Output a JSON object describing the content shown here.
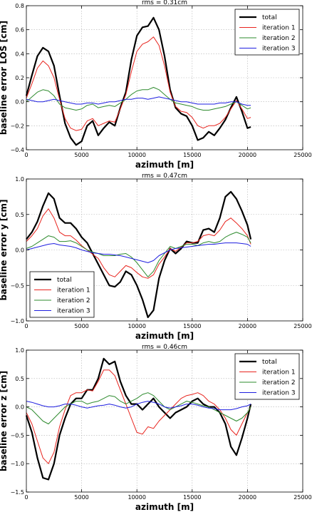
{
  "chart_data": [
    {
      "type": "line",
      "title": "rms = 0.31cm",
      "xlabel": "azimuth [m]",
      "ylabel": "baseline error LOS [cm]",
      "xlim": [
        0,
        25000
      ],
      "ylim": [
        -0.4,
        0.8
      ],
      "xticks": [
        0,
        5000,
        10000,
        15000,
        20000,
        25000
      ],
      "yticks": [
        -0.4,
        -0.2,
        0.0,
        0.2,
        0.4,
        0.6,
        0.8
      ],
      "ytick_labels": [
        "−0.4",
        "−0.2",
        "0.0",
        "0.2",
        "0.4",
        "0.6",
        "0.8"
      ],
      "grid": true,
      "legend_position": "top-right",
      "x": [
        0,
        500,
        1000,
        1500,
        2000,
        2500,
        3000,
        3500,
        4000,
        4500,
        5000,
        5500,
        6000,
        6500,
        7000,
        7500,
        8000,
        8500,
        9000,
        9500,
        10000,
        10500,
        11000,
        11500,
        12000,
        12500,
        13000,
        13500,
        14000,
        14500,
        15000,
        15500,
        16000,
        16500,
        17000,
        17500,
        18000,
        18500,
        19000,
        19500,
        20000,
        20300
      ],
      "series": [
        {
          "name": "total",
          "color": "#000000",
          "width": 2.2,
          "values": [
            0.05,
            0.22,
            0.38,
            0.45,
            0.42,
            0.3,
            0.05,
            -0.18,
            -0.3,
            -0.36,
            -0.33,
            -0.2,
            -0.16,
            -0.28,
            -0.22,
            -0.17,
            -0.2,
            -0.05,
            0.08,
            0.35,
            0.55,
            0.62,
            0.63,
            0.7,
            0.6,
            0.38,
            0.1,
            -0.05,
            -0.1,
            -0.12,
            -0.2,
            -0.32,
            -0.3,
            -0.25,
            -0.28,
            -0.22,
            -0.15,
            -0.05,
            0.04,
            -0.08,
            -0.22,
            -0.21
          ]
        },
        {
          "name": "iteration 1",
          "color": "#e8241e",
          "width": 1.0,
          "values": [
            0.03,
            0.15,
            0.28,
            0.34,
            0.3,
            0.2,
            0.02,
            -0.14,
            -0.22,
            -0.24,
            -0.23,
            -0.16,
            -0.14,
            -0.2,
            -0.18,
            -0.16,
            -0.17,
            -0.06,
            0.06,
            0.25,
            0.42,
            0.48,
            0.5,
            0.54,
            0.47,
            0.3,
            0.08,
            -0.04,
            -0.08,
            -0.09,
            -0.13,
            -0.2,
            -0.22,
            -0.2,
            -0.2,
            -0.18,
            -0.13,
            -0.06,
            0.01,
            -0.06,
            -0.14,
            -0.13
          ]
        },
        {
          "name": "iteration 2",
          "color": "#2e8b2e",
          "width": 1.0,
          "values": [
            0.0,
            0.04,
            0.08,
            0.1,
            0.09,
            0.05,
            -0.02,
            -0.05,
            -0.06,
            -0.07,
            -0.06,
            -0.03,
            -0.02,
            -0.05,
            -0.04,
            -0.03,
            -0.04,
            -0.01,
            0.02,
            0.06,
            0.09,
            0.1,
            0.1,
            0.12,
            0.1,
            0.06,
            0.02,
            -0.01,
            -0.02,
            -0.03,
            -0.04,
            -0.06,
            -0.07,
            -0.07,
            -0.06,
            -0.05,
            -0.04,
            -0.02,
            0.0,
            -0.03,
            -0.06,
            -0.05
          ]
        },
        {
          "name": "iteration 3",
          "color": "#1f1fe0",
          "width": 1.0,
          "values": [
            0.02,
            0.01,
            0.0,
            0.0,
            0.01,
            0.02,
            0.01,
            0.0,
            -0.01,
            -0.02,
            -0.02,
            -0.01,
            -0.01,
            -0.02,
            -0.01,
            0.0,
            0.0,
            0.01,
            0.02,
            0.02,
            0.03,
            0.03,
            0.02,
            0.03,
            0.04,
            0.03,
            0.02,
            0.01,
            0.0,
            0.0,
            -0.01,
            -0.02,
            -0.02,
            -0.02,
            -0.02,
            -0.01,
            -0.01,
            0.0,
            0.0,
            -0.02,
            -0.03,
            -0.03
          ]
        }
      ]
    },
    {
      "type": "line",
      "title": "rms = 0.47cm",
      "xlabel": "azimuth [m]",
      "ylabel": "baseline error y [cm]",
      "xlim": [
        0,
        25000
      ],
      "ylim": [
        -1.0,
        1.0
      ],
      "xticks": [
        0,
        5000,
        10000,
        15000,
        20000,
        25000
      ],
      "yticks": [
        -1.0,
        -0.5,
        0.0,
        0.5,
        1.0
      ],
      "ytick_labels": [
        "−1.0",
        "−0.5",
        "0.0",
        "0.5",
        "1.0"
      ],
      "grid": true,
      "legend_position": "bottom-left",
      "x": [
        0,
        500,
        1000,
        1500,
        2000,
        2500,
        3000,
        3500,
        4000,
        4500,
        5000,
        5500,
        6000,
        6500,
        7000,
        7500,
        8000,
        8500,
        9000,
        9500,
        10000,
        10500,
        11000,
        11500,
        12000,
        12500,
        13000,
        13500,
        14000,
        14500,
        15000,
        15500,
        16000,
        16500,
        17000,
        17500,
        18000,
        18500,
        19000,
        19500,
        20000,
        20300
      ],
      "series": [
        {
          "name": "total",
          "color": "#000000",
          "width": 2.2,
          "values": [
            0.15,
            0.25,
            0.4,
            0.62,
            0.8,
            0.72,
            0.45,
            0.38,
            0.38,
            0.3,
            0.18,
            0.1,
            -0.05,
            -0.2,
            -0.35,
            -0.5,
            -0.52,
            -0.45,
            -0.3,
            -0.35,
            -0.5,
            -0.7,
            -0.95,
            -0.85,
            -0.4,
            -0.15,
            0.02,
            -0.05,
            0.02,
            0.12,
            0.1,
            0.1,
            0.28,
            0.3,
            0.25,
            0.45,
            0.75,
            0.82,
            0.72,
            0.55,
            0.35,
            0.15
          ]
        },
        {
          "name": "iteration 1",
          "color": "#e8241e",
          "width": 1.0,
          "values": [
            0.12,
            0.2,
            0.3,
            0.48,
            0.58,
            0.45,
            0.25,
            0.2,
            0.2,
            0.14,
            0.06,
            0.0,
            -0.06,
            -0.12,
            -0.25,
            -0.35,
            -0.38,
            -0.3,
            -0.22,
            -0.25,
            -0.32,
            -0.38,
            -0.4,
            -0.35,
            -0.2,
            -0.1,
            0.02,
            -0.02,
            0.04,
            0.1,
            0.1,
            0.12,
            0.2,
            0.22,
            0.2,
            0.28,
            0.4,
            0.45,
            0.38,
            0.3,
            0.2,
            0.08
          ]
        },
        {
          "name": "iteration 2",
          "color": "#2e8b2e",
          "width": 1.0,
          "values": [
            0.02,
            0.05,
            0.1,
            0.15,
            0.2,
            0.18,
            0.12,
            0.12,
            0.13,
            0.1,
            0.05,
            0.0,
            -0.03,
            -0.05,
            -0.08,
            -0.08,
            -0.08,
            -0.06,
            -0.05,
            -0.1,
            -0.18,
            -0.28,
            -0.38,
            -0.3,
            -0.15,
            -0.05,
            0.05,
            0.02,
            0.05,
            0.08,
            0.08,
            0.06,
            0.1,
            0.12,
            0.1,
            0.12,
            0.18,
            0.22,
            0.25,
            0.22,
            0.18,
            0.1
          ]
        },
        {
          "name": "iteration 3",
          "color": "#1f1fe0",
          "width": 1.0,
          "values": [
            0.0,
            0.02,
            0.04,
            0.06,
            0.08,
            0.09,
            0.07,
            0.06,
            0.05,
            0.03,
            0.0,
            -0.02,
            -0.04,
            -0.05,
            -0.06,
            -0.06,
            -0.07,
            -0.08,
            -0.1,
            -0.12,
            -0.14,
            -0.16,
            -0.18,
            -0.15,
            -0.08,
            -0.04,
            0.0,
            0.02,
            0.03,
            0.04,
            0.05,
            0.06,
            0.07,
            0.08,
            0.08,
            0.09,
            0.1,
            0.1,
            0.1,
            0.09,
            0.08,
            0.05
          ]
        }
      ]
    },
    {
      "type": "line",
      "title": "rms = 0.46cm",
      "xlabel": "azimuth [m]",
      "ylabel": "baseline error z [cm]",
      "xlim": [
        0,
        25000
      ],
      "ylim": [
        -1.5,
        1.0
      ],
      "xticks": [
        0,
        5000,
        10000,
        15000,
        20000,
        25000
      ],
      "yticks": [
        -1.5,
        -1.0,
        -0.5,
        0.0,
        0.5,
        1.0
      ],
      "ytick_labels": [
        "−1.5",
        "−1.0",
        "−0.5",
        "0.0",
        "0.5",
        "1.0"
      ],
      "grid": true,
      "legend_position": "top-right",
      "x": [
        0,
        500,
        1000,
        1500,
        2000,
        2500,
        3000,
        3500,
        4000,
        4500,
        5000,
        5500,
        6000,
        6500,
        7000,
        7500,
        8000,
        8500,
        9000,
        9500,
        10000,
        10500,
        11000,
        11500,
        12000,
        12500,
        13000,
        13500,
        14000,
        14500,
        15000,
        15500,
        16000,
        16500,
        17000,
        17500,
        18000,
        18500,
        19000,
        19500,
        20000,
        20300
      ],
      "series": [
        {
          "name": "total",
          "color": "#000000",
          "width": 2.2,
          "values": [
            -0.15,
            -0.45,
            -0.9,
            -1.25,
            -1.28,
            -1.0,
            -0.5,
            -0.2,
            0.05,
            0.15,
            0.15,
            0.3,
            0.3,
            0.5,
            0.85,
            0.75,
            0.8,
            0.45,
            0.2,
            0.05,
            0.05,
            -0.05,
            0.05,
            0.15,
            0.0,
            -0.1,
            -0.2,
            -0.1,
            -0.05,
            0.0,
            0.1,
            0.15,
            0.05,
            0.0,
            0.0,
            -0.1,
            -0.3,
            -0.7,
            -0.85,
            -0.55,
            -0.2,
            0.05
          ]
        },
        {
          "name": "iteration 1",
          "color": "#e8241e",
          "width": 1.0,
          "values": [
            -0.1,
            -0.3,
            -0.6,
            -0.9,
            -1.0,
            -0.8,
            -0.35,
            -0.05,
            0.2,
            0.25,
            0.25,
            0.3,
            0.28,
            0.45,
            0.65,
            0.65,
            0.55,
            0.3,
            0.05,
            -0.2,
            -0.45,
            -0.48,
            -0.35,
            -0.38,
            -0.25,
            -0.15,
            -0.05,
            0.05,
            0.15,
            0.2,
            0.22,
            0.25,
            0.2,
            0.1,
            0.05,
            -0.05,
            -0.2,
            -0.4,
            -0.5,
            -0.3,
            -0.1,
            0.0
          ]
        },
        {
          "name": "iteration 2",
          "color": "#2e8b2e",
          "width": 1.0,
          "values": [
            0.0,
            -0.05,
            -0.15,
            -0.25,
            -0.3,
            -0.2,
            -0.1,
            0.0,
            0.05,
            0.1,
            0.1,
            0.05,
            0.08,
            0.1,
            0.15,
            0.2,
            0.18,
            0.1,
            0.05,
            0.1,
            0.15,
            0.22,
            0.25,
            0.2,
            0.1,
            0.0,
            -0.05,
            0.0,
            0.05,
            0.1,
            0.08,
            0.05,
            0.02,
            0.0,
            -0.05,
            -0.1,
            -0.15,
            -0.2,
            -0.25,
            -0.2,
            -0.1,
            0.0
          ]
        },
        {
          "name": "iteration 3",
          "color": "#1f1fe0",
          "width": 1.0,
          "values": [
            0.1,
            0.08,
            0.05,
            0.02,
            0.0,
            0.0,
            0.02,
            0.05,
            0.05,
            0.03,
            0.0,
            -0.02,
            0.0,
            0.02,
            0.03,
            0.05,
            0.03,
            0.0,
            -0.02,
            0.0,
            0.05,
            0.08,
            0.1,
            0.08,
            0.05,
            0.0,
            -0.02,
            0.0,
            0.02,
            0.05,
            0.05,
            0.03,
            0.0,
            -0.02,
            -0.03,
            -0.05,
            -0.05,
            -0.05,
            -0.03,
            0.0,
            0.02,
            0.05
          ]
        }
      ]
    }
  ]
}
